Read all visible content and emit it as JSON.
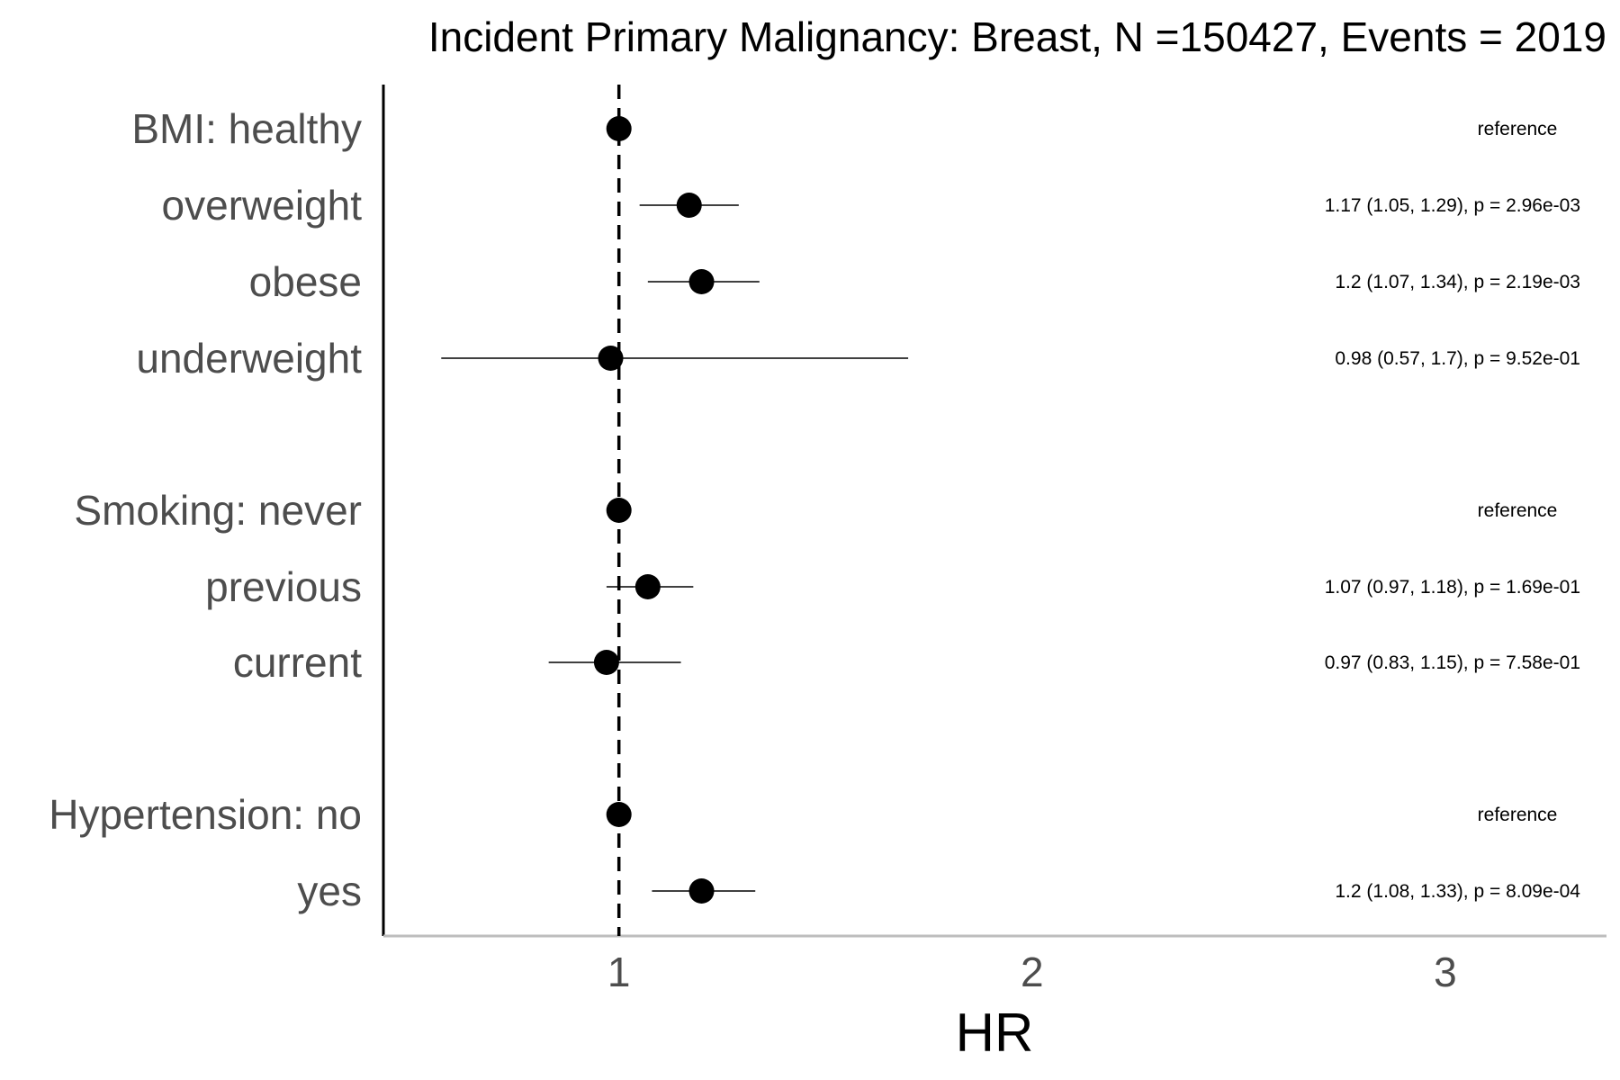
{
  "chart_data": {
    "type": "scatter",
    "subtype": "forest-plot",
    "title": "Incident Primary Malignancy: Breast, N =150427, Events = 2019",
    "xlabel": "HR",
    "ylabel": "",
    "xlim": [
      0.43,
      3.39
    ],
    "xticks": [
      {
        "value": 1,
        "label": "1"
      },
      {
        "value": 2,
        "label": "2"
      },
      {
        "value": 3,
        "label": "3"
      }
    ],
    "reference_line": {
      "x": 1,
      "style": "dashed"
    },
    "grid": false,
    "legend": "none",
    "rows": [
      {
        "label": "BMI: healthy",
        "hr": 1.0,
        "lower": null,
        "upper": null,
        "annotation": "reference"
      },
      {
        "label": "overweight",
        "hr": 1.17,
        "lower": 1.05,
        "upper": 1.29,
        "annotation": "1.17 (1.05, 1.29), p = 2.96e-03"
      },
      {
        "label": "obese",
        "hr": 1.2,
        "lower": 1.07,
        "upper": 1.34,
        "annotation": "1.2 (1.07, 1.34), p = 2.19e-03"
      },
      {
        "label": "underweight",
        "hr": 0.98,
        "lower": 0.57,
        "upper": 1.7,
        "annotation": "0.98 (0.57, 1.7), p = 9.52e-01"
      },
      {
        "label": "Smoking: never",
        "hr": 1.0,
        "lower": null,
        "upper": null,
        "annotation": "reference"
      },
      {
        "label": "previous",
        "hr": 1.07,
        "lower": 0.97,
        "upper": 1.18,
        "annotation": "1.07 (0.97, 1.18), p = 1.69e-01"
      },
      {
        "label": "current",
        "hr": 0.97,
        "lower": 0.83,
        "upper": 1.15,
        "annotation": "0.97 (0.83, 1.15), p = 7.58e-01"
      },
      {
        "label": "Hypertension: no",
        "hr": 1.0,
        "lower": null,
        "upper": null,
        "annotation": "reference"
      },
      {
        "label": "yes",
        "hr": 1.2,
        "lower": 1.08,
        "upper": 1.33,
        "annotation": "1.2 (1.08, 1.33), p = 8.09e-04"
      }
    ]
  }
}
